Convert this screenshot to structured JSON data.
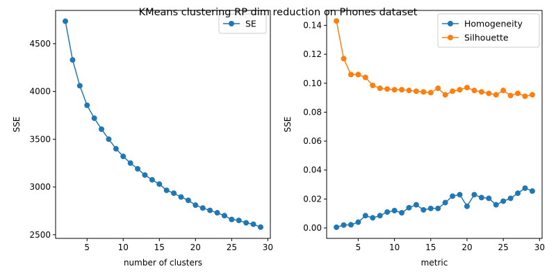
{
  "figure": {
    "title": "KMeans clustering RP dim reduction on Phones dataset"
  },
  "chart_data": [
    {
      "type": "line",
      "xlabel": "number of clusters",
      "ylabel": "SSE",
      "xlim": [
        0.65,
        30.35
      ],
      "ylim": [
        2462,
        4848
      ],
      "xticks": [
        5,
        10,
        15,
        20,
        25,
        30
      ],
      "yticks": [
        2500,
        3000,
        3500,
        4000,
        4500
      ],
      "legend": "top-right",
      "grid": false,
      "x": [
        2,
        3,
        4,
        5,
        6,
        7,
        8,
        9,
        10,
        11,
        12,
        13,
        14,
        15,
        16,
        17,
        18,
        19,
        20,
        21,
        22,
        23,
        24,
        25,
        26,
        27,
        28,
        29
      ],
      "series": [
        {
          "name": "SE",
          "color": "#1f77b4",
          "values": [
            4735,
            4330,
            4060,
            3855,
            3720,
            3605,
            3500,
            3400,
            3320,
            3250,
            3190,
            3125,
            3075,
            3030,
            2965,
            2935,
            2895,
            2860,
            2810,
            2780,
            2755,
            2730,
            2700,
            2660,
            2650,
            2625,
            2610,
            2580
          ]
        }
      ]
    },
    {
      "type": "line",
      "xlabel": "metric",
      "ylabel": "SSE",
      "xlim": [
        0.65,
        30.35
      ],
      "ylim": [
        -0.0072,
        0.1503
      ],
      "xticks": [
        5,
        10,
        15,
        20,
        25,
        30
      ],
      "yticks": [
        0.0,
        0.02,
        0.04,
        0.06,
        0.08,
        0.1,
        0.12,
        0.14
      ],
      "ytick_labels": [
        "0.00",
        "0.02",
        "0.04",
        "0.06",
        "0.08",
        "0.10",
        "0.12",
        "0.14"
      ],
      "legend": "top-right",
      "grid": false,
      "x": [
        2,
        3,
        4,
        5,
        6,
        7,
        8,
        9,
        10,
        11,
        12,
        13,
        14,
        15,
        16,
        17,
        18,
        19,
        20,
        21,
        22,
        23,
        24,
        25,
        26,
        27,
        28,
        29
      ],
      "series": [
        {
          "name": "Homogeneity",
          "color": "#1f77b4",
          "values": [
            0.0005,
            0.002,
            0.0022,
            0.004,
            0.0085,
            0.007,
            0.0085,
            0.011,
            0.012,
            0.0105,
            0.014,
            0.016,
            0.0125,
            0.0135,
            0.0135,
            0.0175,
            0.022,
            0.023,
            0.015,
            0.023,
            0.021,
            0.0205,
            0.016,
            0.0185,
            0.0205,
            0.024,
            0.0275,
            0.0255
          ]
        },
        {
          "name": "Silhouette",
          "color": "#ff7f0e",
          "values": [
            0.143,
            0.117,
            0.106,
            0.106,
            0.104,
            0.0985,
            0.0965,
            0.096,
            0.0955,
            0.0955,
            0.095,
            0.0945,
            0.094,
            0.0935,
            0.0965,
            0.092,
            0.0945,
            0.0955,
            0.097,
            0.095,
            0.094,
            0.093,
            0.092,
            0.095,
            0.0915,
            0.093,
            0.091,
            0.092
          ]
        }
      ]
    }
  ]
}
